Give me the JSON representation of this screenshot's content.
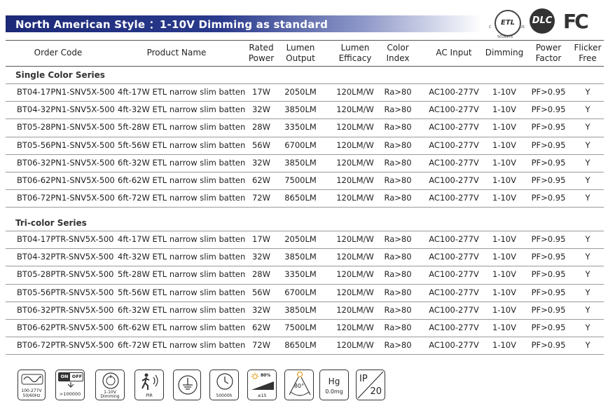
{
  "banner": {
    "title": "North American Style ：1-10V Dimming as standard"
  },
  "certifications": {
    "etl": {
      "mark": "ETL",
      "left": "C",
      "right": "US",
      "number": "5016976"
    },
    "dlc": {
      "mark": "DLC"
    },
    "fc": {
      "mark": "FC"
    }
  },
  "table": {
    "headers": [
      [
        "Order Code"
      ],
      [
        "Product Name"
      ],
      [
        "Rated",
        "Power"
      ],
      [
        "Lumen",
        "Output"
      ],
      [
        "Lumen",
        "Efficacy"
      ],
      [
        "Color",
        "Index"
      ],
      [
        "AC Input"
      ],
      [
        "Dimming"
      ],
      [
        "Power",
        "Factor"
      ],
      [
        "Flicker",
        "Free"
      ]
    ],
    "sections": [
      {
        "title": "Single Color Series",
        "rows": [
          [
            "BT04-17PN1-SNV5X-500",
            "4ft-17W ETL narrow slim batten",
            "17W",
            "2050LM",
            "120LM/W",
            "Ra>80",
            "AC100-277V",
            "1-10V",
            "PF>0.95",
            "Y"
          ],
          [
            "BT04-32PN1-SNV5X-500",
            "4ft-32W ETL narrow slim batten",
            "32W",
            "3850LM",
            "120LM/W",
            "Ra>80",
            "AC100-277V",
            "1-10V",
            "PF>0.95",
            "Y"
          ],
          [
            "BT05-28PN1-SNV5X-500",
            "5ft-28W ETL narrow slim batten",
            "28W",
            "3350LM",
            "120LM/W",
            "Ra>80",
            "AC100-277V",
            "1-10V",
            "PF>0.95",
            "Y"
          ],
          [
            "BT05-56PN1-SNV5X-500",
            "5ft-56W ETL narrow slim batten",
            "56W",
            "6700LM",
            "120LM/W",
            "Ra>80",
            "AC100-277V",
            "1-10V",
            "PF>0.95",
            "Y"
          ],
          [
            "BT06-32PN1-SNV5X-500",
            "6ft-32W ETL narrow slim batten",
            "32W",
            "3850LM",
            "120LM/W",
            "Ra>80",
            "AC100-277V",
            "1-10V",
            "PF>0.95",
            "Y"
          ],
          [
            "BT06-62PN1-SNV5X-500",
            "6ft-62W ETL narrow slim batten",
            "62W",
            "7500LM",
            "120LM/W",
            "Ra>80",
            "AC100-277V",
            "1-10V",
            "PF>0.95",
            "Y"
          ],
          [
            "BT06-72PN1-SNV5X-500",
            "6ft-72W ETL narrow slim batten",
            "72W",
            "8650LM",
            "120LM/W",
            "Ra>80",
            "AC100-277V",
            "1-10V",
            "PF>0.95",
            "Y"
          ]
        ]
      },
      {
        "title": "Tri-color Series",
        "rows": [
          [
            "BT04-17PTR-SNV5X-500",
            "4ft-17W ETL narrow slim batten",
            "17W",
            "2050LM",
            "120LM/W",
            "Ra>80",
            "AC100-277V",
            "1-10V",
            "PF>0.95",
            "Y"
          ],
          [
            "BT04-32PTR-SNV5X-500",
            "4ft-32W ETL narrow slim batten",
            "32W",
            "3850LM",
            "120LM/W",
            "Ra>80",
            "AC100-277V",
            "1-10V",
            "PF>0.95",
            "Y"
          ],
          [
            "BT05-28PTR-SNV5X-500",
            "5ft-28W ETL narrow slim batten",
            "28W",
            "3350LM",
            "120LM/W",
            "Ra>80",
            "AC100-277V",
            "1-10V",
            "PF>0.95",
            "Y"
          ],
          [
            "BT05-56PTR-SNV5X-500",
            "5ft-56W ETL narrow slim batten",
            "56W",
            "6700LM",
            "120LM/W",
            "Ra>80",
            "AC100-277V",
            "1-10V",
            "PF>0.95",
            "Y"
          ],
          [
            "BT06-32PTR-SNV5X-500",
            "6ft-32W ETL narrow slim batten",
            "32W",
            "3850LM",
            "120LM/W",
            "Ra>80",
            "AC100-277V",
            "1-10V",
            "PF>0.95",
            "Y"
          ],
          [
            "BT06-62PTR-SNV5X-500",
            "6ft-62W ETL narrow slim batten",
            "62W",
            "7500LM",
            "120LM/W",
            "Ra>80",
            "AC100-277V",
            "1-10V",
            "PF>0.95",
            "Y"
          ],
          [
            "BT06-72PTR-SNV5X-500",
            "6ft-72W ETL narrow slim batten",
            "72W",
            "8650LM",
            "120LM/W",
            "Ra>80",
            "AC100-277V",
            "1-10V",
            "PF>0.95",
            "Y"
          ]
        ]
      }
    ]
  },
  "feature_icons": {
    "input": {
      "line1": "100-277V",
      "line2": "50/60Hz",
      "icon": "sine-wave-icon"
    },
    "switching": {
      "on": "ON",
      "off": "OFF",
      "count": ">100000",
      "icon": "toggle-icon"
    },
    "dimming": {
      "label": "1-10V",
      "sub": "Dimming",
      "icon": "dimmer-knob-icon"
    },
    "pir": {
      "label": "PIR",
      "icon": "motion-sensor-icon"
    },
    "ground": {
      "icon": "ground-icon"
    },
    "lifetime": {
      "label": "50000h",
      "icon": "clock-icon"
    },
    "startup": {
      "percent": "80%",
      "time": "≤1S",
      "icon": "brightness-ramp-icon"
    },
    "beam": {
      "angle": "80°",
      "icon": "beam-angle-icon"
    },
    "mercury": {
      "symbol": "Hg",
      "value": "0.0mg",
      "icon": "mercury-free-icon"
    },
    "ip": {
      "prefix": "IP",
      "rating": "20",
      "icon": "ip-rating-icon"
    }
  }
}
